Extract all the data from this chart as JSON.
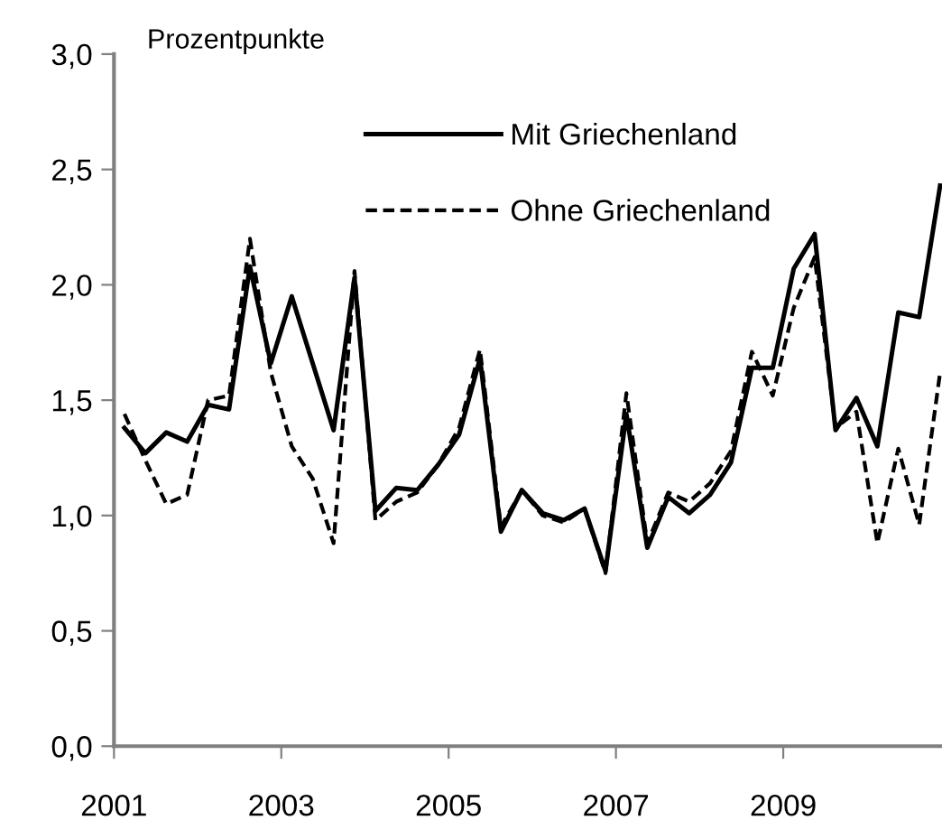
{
  "chart_data": {
    "type": "line",
    "ylabel": "Prozentpunkte",
    "x": [
      2001.125,
      2001.375,
      2001.625,
      2001.875,
      2002.125,
      2002.375,
      2002.625,
      2002.875,
      2003.125,
      2003.375,
      2003.625,
      2003.875,
      2004.125,
      2004.375,
      2004.625,
      2004.875,
      2005.125,
      2005.375,
      2005.625,
      2005.875,
      2006.125,
      2006.375,
      2006.625,
      2006.875,
      2007.125,
      2007.375,
      2007.625,
      2007.875,
      2008.125,
      2008.375,
      2008.625,
      2008.875,
      2009.125,
      2009.375,
      2009.625,
      2009.875,
      2010.125,
      2010.375,
      2010.625,
      2010.875
    ],
    "series": [
      {
        "name": "Mit Griechenland",
        "color": "#000000",
        "line_style": "solid",
        "values": [
          1.38,
          1.27,
          1.36,
          1.32,
          1.48,
          1.46,
          2.08,
          1.66,
          1.95,
          1.66,
          1.37,
          2.03,
          1.02,
          1.12,
          1.11,
          1.22,
          1.35,
          1.68,
          0.93,
          1.11,
          1.01,
          0.98,
          1.03,
          0.76,
          1.44,
          0.86,
          1.08,
          1.01,
          1.09,
          1.23,
          1.64,
          1.64,
          2.07,
          2.22,
          1.37,
          1.51,
          1.3,
          1.88,
          1.86,
          2.43
        ]
      },
      {
        "name": "Ohne Griechenland",
        "color": "#000000",
        "line_style": "dashed",
        "values": [
          1.44,
          1.24,
          1.05,
          1.09,
          1.5,
          1.52,
          2.2,
          1.62,
          1.3,
          1.16,
          0.88,
          2.06,
          0.98,
          1.06,
          1.1,
          1.22,
          1.38,
          1.72,
          0.95,
          1.11,
          1.0,
          0.97,
          1.03,
          0.75,
          1.53,
          0.88,
          1.1,
          1.06,
          1.14,
          1.28,
          1.71,
          1.52,
          1.9,
          2.12,
          1.38,
          1.45,
          0.88,
          1.29,
          0.96,
          1.62
        ]
      }
    ],
    "xlim": [
      2001,
      2010.875
    ],
    "xticks": [
      2001,
      2003,
      2005,
      2007,
      2009
    ],
    "ylim": [
      0,
      3
    ],
    "yticks": [
      {
        "value": 0,
        "label": "0,0"
      },
      {
        "value": 0.5,
        "label": "0,5"
      },
      {
        "value": 1,
        "label": "1,0"
      },
      {
        "value": 1.5,
        "label": "1,5"
      },
      {
        "value": 2,
        "label": "2,0"
      },
      {
        "value": 2.5,
        "label": "2,5"
      },
      {
        "value": 3,
        "label": "3,0"
      }
    ],
    "grid": false,
    "legend": "top",
    "marker": "none"
  }
}
